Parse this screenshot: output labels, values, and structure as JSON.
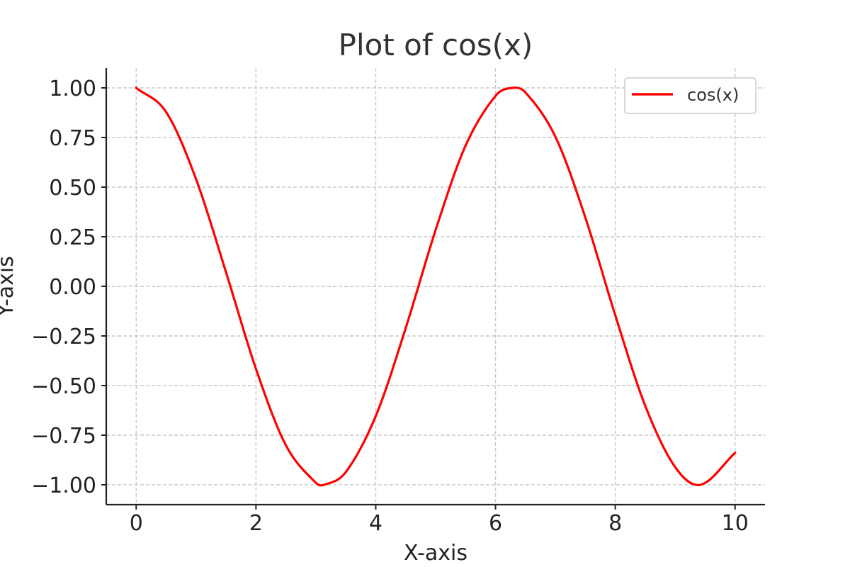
{
  "chart_data": {
    "type": "line",
    "title": "Plot of cos(x)",
    "xlabel": "X-axis",
    "ylabel": "Y-axis",
    "xlim": [
      -0.5,
      10.5
    ],
    "ylim": [
      -1.1,
      1.1
    ],
    "x_ticks": [
      0,
      2,
      4,
      6,
      8,
      10
    ],
    "x_tick_labels": [
      "0",
      "2",
      "4",
      "6",
      "8",
      "10"
    ],
    "y_ticks": [
      1.0,
      0.75,
      0.5,
      0.25,
      0.0,
      -0.25,
      -0.5,
      -0.75,
      -1.0
    ],
    "y_tick_labels": [
      "1.00",
      "0.75",
      "0.50",
      "0.25",
      "0.00",
      "−0.25",
      "−0.50",
      "−0.75",
      "−1.00"
    ],
    "grid": true,
    "legend_position": "top-right",
    "series": [
      {
        "name": "cos(x)",
        "color": "#ff0000",
        "x": [
          0.0,
          0.5,
          1.0,
          1.5,
          2.0,
          2.5,
          3.0,
          3.1416,
          3.5,
          4.0,
          4.5,
          5.0,
          5.5,
          6.0,
          6.2832,
          6.5,
          7.0,
          7.5,
          8.0,
          8.5,
          9.0,
          9.4248,
          10.0
        ],
        "y": [
          1.0,
          0.878,
          0.54,
          0.071,
          -0.416,
          -0.801,
          -0.99,
          -1.0,
          -0.936,
          -0.654,
          -0.211,
          0.284,
          0.709,
          0.96,
          1.0,
          0.977,
          0.754,
          0.347,
          -0.146,
          -0.602,
          -0.911,
          -1.0,
          -0.839
        ]
      }
    ]
  }
}
